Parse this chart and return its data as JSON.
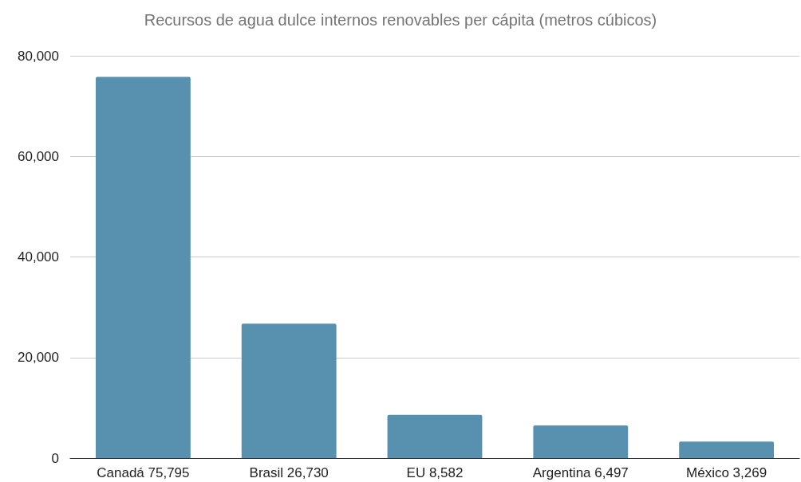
{
  "chart_data": {
    "type": "bar",
    "title": "Recursos de agua dulce internos renovables per cápita (metros cúbicos)",
    "categories": [
      "Canadá 75,795",
      "Brasil 26,730",
      "EU 8,582",
      "Argentina 6,497",
      "México 3,269"
    ],
    "values": [
      75795,
      26730,
      8582,
      6497,
      3269
    ],
    "color": "#5891b0",
    "ylim": [
      0,
      80000
    ],
    "yticks": [
      0,
      {
        "value": 20000,
        "label": "20,000"
      },
      {
        "value": 40000,
        "label": "40,000"
      },
      {
        "value": 60000,
        "label": "60,000"
      },
      {
        "value": 80000,
        "label": "80,000"
      }
    ],
    "grid": "y"
  }
}
